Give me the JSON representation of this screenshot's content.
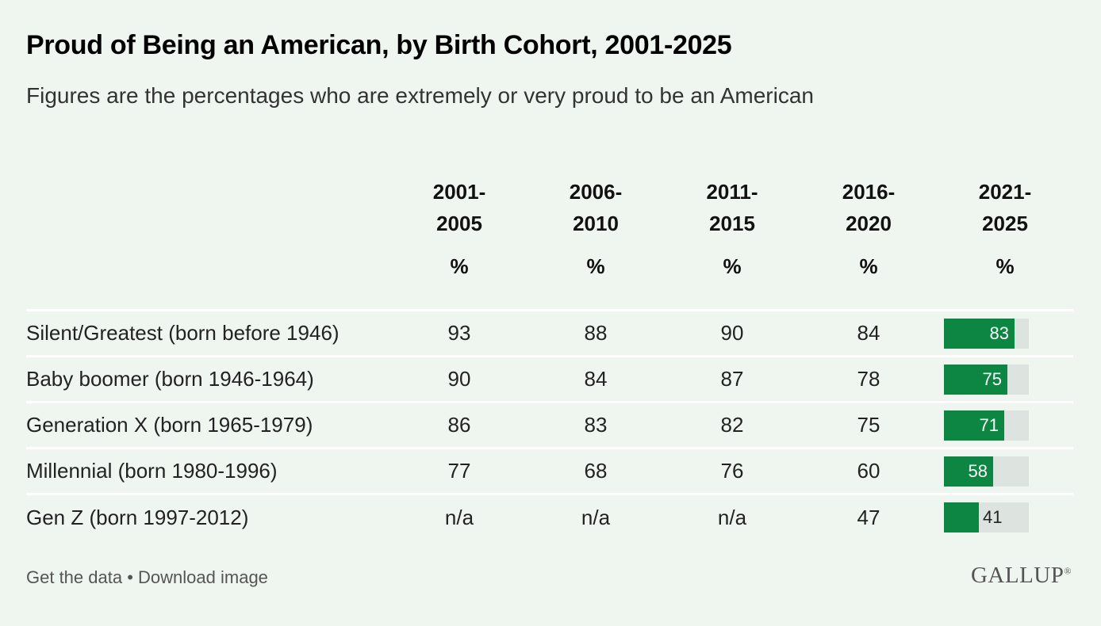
{
  "title": "Proud of Being an American, by Birth Cohort, 2001-2025",
  "subtitle": "Figures are the percentages who are extremely or very proud to be an American",
  "colors": {
    "background": "#eef6ef",
    "bar_fill": "#0d8543",
    "bar_track": "#dde3de"
  },
  "chart_data": {
    "type": "table",
    "title": "Proud of Being an American, by Birth Cohort, 2001-2025",
    "subtitle": "Figures are the percentages who are extremely or very proud to be an American",
    "columns": [
      {
        "line1": "2001-",
        "line2": "2005",
        "unit": "%"
      },
      {
        "line1": "2006-",
        "line2": "2010",
        "unit": "%"
      },
      {
        "line1": "2011-",
        "line2": "2015",
        "unit": "%"
      },
      {
        "line1": "2016-",
        "line2": "2020",
        "unit": "%"
      },
      {
        "line1": "2021-",
        "line2": "2025",
        "unit": "%"
      }
    ],
    "rows": [
      {
        "label": "Silent/Greatest (born before 1946)",
        "values": [
          "93",
          "88",
          "90",
          "84",
          "83"
        ]
      },
      {
        "label": "Baby boomer (born 1946-1964)",
        "values": [
          "90",
          "84",
          "87",
          "78",
          "75"
        ]
      },
      {
        "label": "Generation X (born 1965-1979)",
        "values": [
          "86",
          "83",
          "82",
          "75",
          "71"
        ]
      },
      {
        "label": "Millennial (born 1980-1996)",
        "values": [
          "77",
          "68",
          "76",
          "60",
          "58"
        ]
      },
      {
        "label": "Gen Z (born 1997-2012)",
        "values": [
          "n/a",
          "n/a",
          "n/a",
          "47",
          "41"
        ]
      }
    ],
    "bar_column_index": 4,
    "bar_range": [
      0,
      100
    ]
  },
  "footer": {
    "get_data": "Get the data",
    "separator": "•",
    "download": "Download image"
  },
  "logo": {
    "text": "GALLUP",
    "mark": "®"
  }
}
